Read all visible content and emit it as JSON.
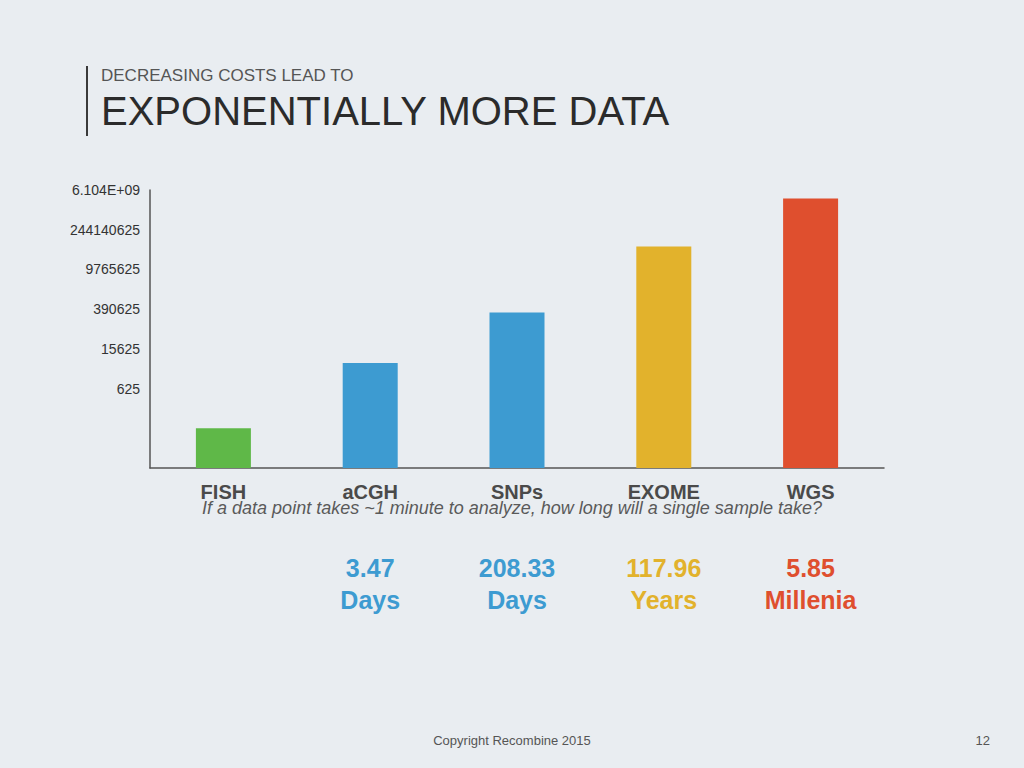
{
  "chart_data": {
    "type": "bar",
    "subtitle": "DECREASING COSTS LEAD TO",
    "title": "EXPONENTIALLY MORE DATA",
    "categories": [
      "FISH",
      "aCGH",
      "SNPs",
      "EXOME",
      "WGS"
    ],
    "values": [
      25,
      5000,
      300000,
      62000000,
      3075000000
    ],
    "colors": [
      "#5fb848",
      "#3d9bd1",
      "#3d9bd1",
      "#e2b22c",
      "#df4f2e"
    ],
    "log": "y",
    "ylim": [
      1,
      6103515625
    ],
    "yticks": [
      625,
      15625,
      390625,
      9765625,
      244140625,
      {
        "value": 6103515625,
        "label": "6.104E+09"
      }
    ],
    "grid": false,
    "annotations": {
      "question": "If a data point takes ~1 minute to analyze, how long will a single sample take?",
      "time_labels": [
        null,
        "3.47 Days",
        "208.33 Days",
        "117.96 Years",
        "5.85 Millenia"
      ],
      "footer": "Copyright Recombine 2015",
      "page_number": "12"
    }
  }
}
